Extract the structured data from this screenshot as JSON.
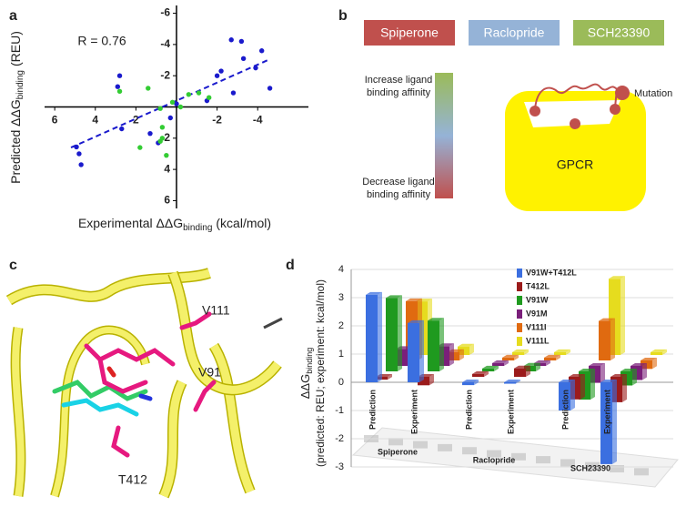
{
  "panel_labels": [
    "a",
    "b",
    "c",
    "d"
  ],
  "chart_data": [
    {
      "type": "scatter",
      "annotation": "R = 0.76",
      "xlabel": "Experimental ΔΔG",
      "xlabel_sub": "binding",
      "xlabel_unit": "(kcal/mol)",
      "ylabel": "Predicted ΔΔG",
      "ylabel_sub": "binding",
      "ylabel_unit": "(REU)",
      "xlim": [
        6.5,
        -6.5
      ],
      "ylim": [
        6.5,
        -6.5
      ],
      "xticks": [
        6,
        4,
        2,
        -2,
        -4
      ],
      "yticks": [
        -6,
        -4,
        -2,
        2,
        4,
        6
      ],
      "series": [
        {
          "color": "#1a1acc",
          "x": [
            4.93,
            4.8,
            4.7,
            2.8,
            2.9,
            2.7,
            1.3,
            0.3,
            0,
            -2.7,
            -3.2,
            -3.3,
            -4.2,
            -4.6,
            -3.9,
            -2.2,
            -2.0,
            -2.8,
            -1.5,
            0.9
          ],
          "y": [
            2.56,
            3.0,
            3.7,
            -2.0,
            -1.3,
            1.4,
            1.7,
            0.7,
            -0.2,
            -4.3,
            -4.2,
            -3.1,
            -3.6,
            -1.2,
            -2.5,
            -2.3,
            -2.0,
            -0.9,
            -0.4,
            2.3
          ]
        },
        {
          "color": "#33cc33",
          "x": [
            2.8,
            1.4,
            1.8,
            0.8,
            0.7,
            0.7,
            0.8,
            0.2,
            -0.2,
            -0.6,
            -1.1,
            -1.6,
            0.5
          ],
          "y": [
            -1.0,
            -1.2,
            2.6,
            2.2,
            2.0,
            1.3,
            0.1,
            -0.3,
            0,
            -0.8,
            -0.9,
            -0.6,
            3.1
          ]
        }
      ],
      "fit": {
        "color": "#1a1acc",
        "x": [
          5.2,
          -4.5
        ],
        "y": [
          2.6,
          -3.0
        ]
      }
    },
    {
      "type": "bar3d",
      "ylabel": "ΔΔG",
      "ylabel_sub": "binding",
      "ylabel2": "(predicted: REU; experiment: kcal/mol)",
      "groups": [
        "Spiperone",
        "Raclopride",
        "SCH23390"
      ],
      "categories": [
        "Prediction",
        "Experiment",
        "Prediction",
        "Experiment",
        "Prediction",
        "Experiment"
      ],
      "ylim": [
        -3,
        4
      ],
      "yticks": [
        -3,
        -2,
        -1,
        0,
        1,
        2,
        3,
        4
      ],
      "series": [
        {
          "name": "V91W+T412L",
          "color": "#3b6fe0",
          "values": [
            3.1,
            2.1,
            -0.1,
            -0.05,
            -1.0,
            -2.9
          ]
        },
        {
          "name": "T412L",
          "color": "#9b1b1b",
          "values": [
            -0.1,
            -0.3,
            0.1,
            0.3,
            -0.8,
            -0.9
          ]
        },
        {
          "name": "V91W",
          "color": "#1f9a1f",
          "values": [
            2.6,
            1.8,
            0.1,
            0.2,
            -1.0,
            -0.5
          ]
        },
        {
          "name": "V91M",
          "color": "#7a1f7a",
          "values": [
            0.6,
            0.7,
            0.1,
            0.1,
            -0.6,
            -0.5
          ]
        },
        {
          "name": "V111I",
          "color": "#e06a10",
          "values": [
            2.1,
            0.3,
            0.1,
            0.1,
            1.4,
            -0.3
          ]
        },
        {
          "name": "V111L",
          "color": "#e6dc1e",
          "values": [
            1.9,
            0.3,
            0.1,
            0.1,
            2.7,
            0.1
          ]
        }
      ]
    }
  ],
  "diagram": {
    "ligands": [
      "Spiperone",
      "Raclopride",
      "SCH23390"
    ],
    "gradient_top": [
      "Increase ligand",
      "binding affinity"
    ],
    "gradient_bottom": [
      "Decrease ligand",
      "binding affinity"
    ],
    "receptor": "GPCR",
    "legend": "Mutation"
  },
  "structure": {
    "residues": [
      "V111",
      "V91",
      "T412"
    ]
  }
}
